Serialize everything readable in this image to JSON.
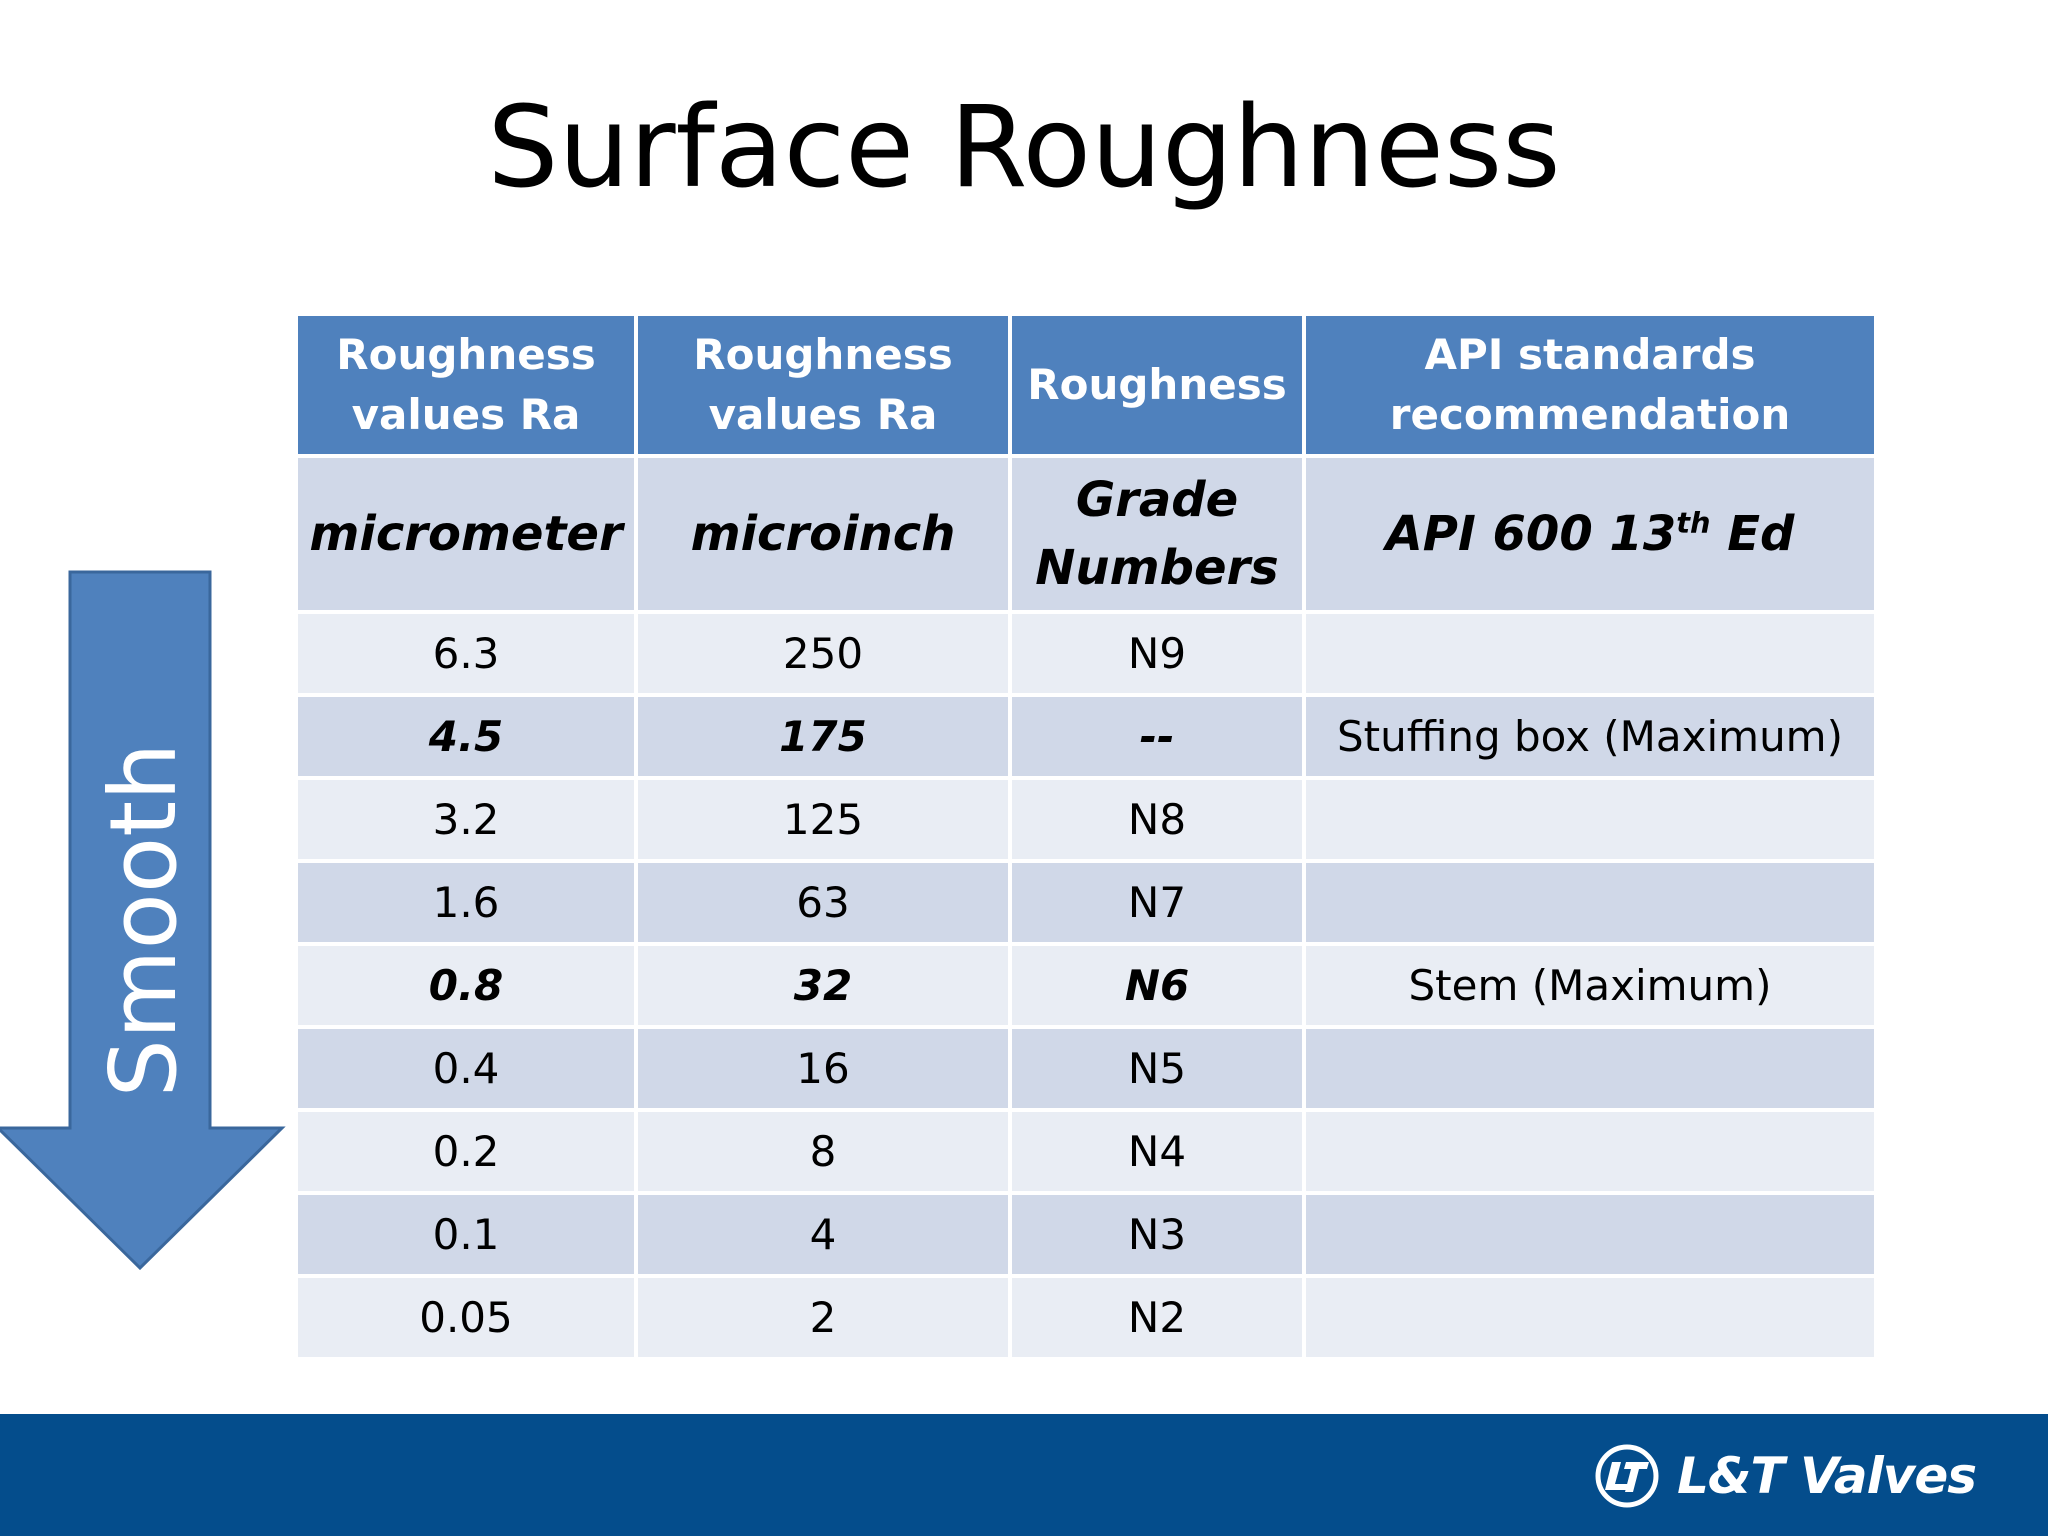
{
  "slide": {
    "title": "Surface Roughness",
    "arrow_label": "Smooth"
  },
  "table": {
    "headers": [
      "Roughness values Ra",
      "Roughness values Ra",
      "Roughness",
      "API standards recommendation"
    ],
    "header_lines": [
      [
        "Roughness",
        "values Ra"
      ],
      [
        "Roughness",
        "values Ra"
      ],
      [
        "Roughness"
      ],
      [
        "API standards",
        "recommendation"
      ]
    ],
    "units": {
      "col1": "micrometer",
      "col2": "microinch",
      "col3_line1": "Grade",
      "col3_line2": "Numbers",
      "col4_prefix": "API 600 13",
      "col4_sup": "th",
      "col4_suffix": " Ed"
    },
    "rows": [
      {
        "micrometer": "6.3",
        "microinch": "250",
        "grade": "N9",
        "api": "",
        "emphasis": false
      },
      {
        "micrometer": "4.5",
        "microinch": "175",
        "grade": "--",
        "api": "Stuffing box (Maximum)",
        "emphasis": true
      },
      {
        "micrometer": "3.2",
        "microinch": "125",
        "grade": "N8",
        "api": "",
        "emphasis": false
      },
      {
        "micrometer": "1.6",
        "microinch": "63",
        "grade": "N7",
        "api": "",
        "emphasis": false
      },
      {
        "micrometer": "0.8",
        "microinch": "32",
        "grade": "N6",
        "api": "Stem (Maximum)",
        "emphasis": true
      },
      {
        "micrometer": "0.4",
        "microinch": "16",
        "grade": "N5",
        "api": "",
        "emphasis": false
      },
      {
        "micrometer": "0.2",
        "microinch": "8",
        "grade": "N4",
        "api": "",
        "emphasis": false
      },
      {
        "micrometer": "0.1",
        "microinch": "4",
        "grade": "N3",
        "api": "",
        "emphasis": false
      },
      {
        "micrometer": "0.05",
        "microinch": "2",
        "grade": "N2",
        "api": "",
        "emphasis": false
      }
    ]
  },
  "footer": {
    "logo_text": "L&T Valves",
    "logo_icon": "lt-logo-icon"
  },
  "colors": {
    "header_blue": "#4f81bd",
    "row_light": "#e9edf4",
    "row_dark": "#d0d8e8",
    "footer_blue": "#044d8c"
  }
}
